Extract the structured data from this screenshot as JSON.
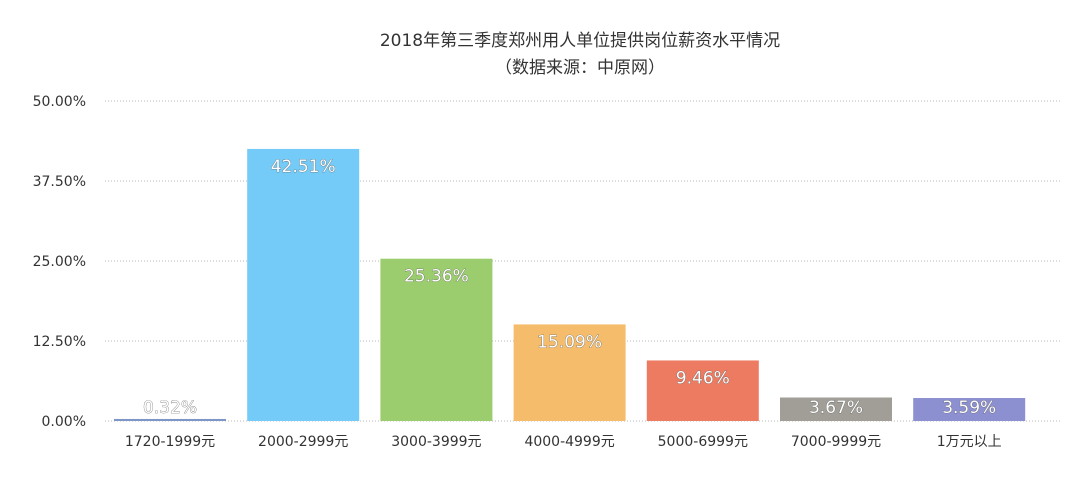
{
  "chart_data": {
    "type": "bar",
    "title": "2018年第三季度郑州用人单位提供岗位薪资水平情况",
    "subtitle": "（数据来源：中原网）",
    "xlabel": "",
    "ylabel": "",
    "categories": [
      "1720-1999元",
      "2000-2999元",
      "3000-3999元",
      "4000-4999元",
      "5000-6999元",
      "7000-9999元",
      "1万元以上"
    ],
    "values": [
      0.32,
      42.51,
      25.36,
      15.09,
      9.46,
      3.67,
      3.59
    ],
    "data_labels": [
      "0.32%",
      "42.51%",
      "25.36%",
      "15.09%",
      "9.46%",
      "3.67%",
      "3.59%"
    ],
    "colors": [
      "#7f96c9",
      "#74cbf7",
      "#9bcd6e",
      "#f5bc6c",
      "#ec7b61",
      "#a09e97",
      "#8c8fd0"
    ],
    "ylim": [
      0,
      50
    ],
    "yticks": [
      0,
      12.5,
      25,
      37.5,
      50
    ],
    "ytick_labels": [
      "0.00%",
      "12.50%",
      "25.00%",
      "37.50%",
      "50.00%"
    ],
    "grid": true,
    "legend": false
  }
}
